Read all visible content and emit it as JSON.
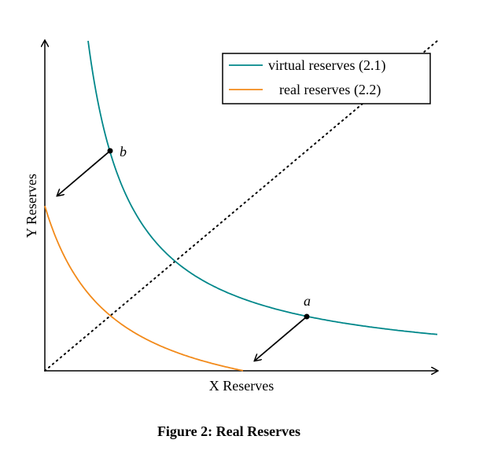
{
  "figure": {
    "legend": [
      "virtual reserves (2.1)",
      "real reserves (2.2)"
    ],
    "x_axis_label": "X Reserves",
    "y_axis_label": "Y Reserves",
    "points": [
      "a",
      "b"
    ],
    "caption": "Figure 2: Real Reserves"
  }
}
